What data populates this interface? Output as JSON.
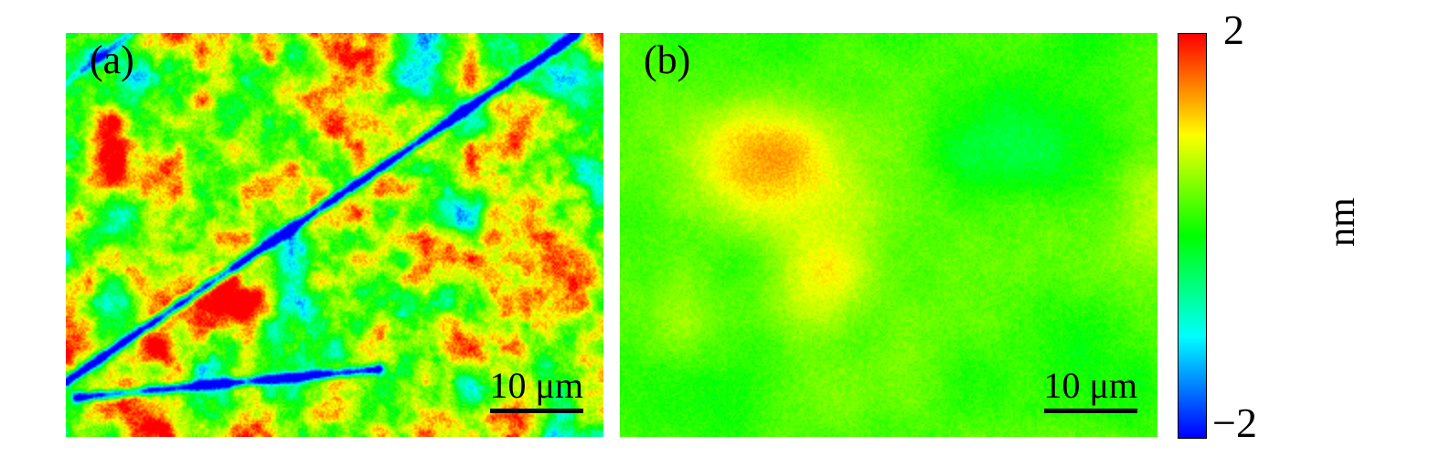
{
  "figure": {
    "panels": [
      {
        "label": "(a)",
        "scalebar_text": "10 μm"
      },
      {
        "label": "(b)",
        "scalebar_text": "10 μm"
      }
    ],
    "colorbar": {
      "tick_top": "2",
      "tick_bottom": "−2",
      "unit": "nm"
    }
  },
  "chart_data": {
    "type": "heatmap",
    "title": "",
    "unit": "nm",
    "value_range_nm": [
      -2,
      2
    ],
    "colorbar_ticks": [
      2,
      -2
    ],
    "scale_bar_um": 10,
    "colormap": "rainbow (blue → green → yellow → orange → red)",
    "legend_position": "right colorbar",
    "panels": [
      {
        "label": "(a)",
        "description": "Rough granular film: red/orange grains ~1–2 nm high over yellow/green background, scattered blue pits and long blue diagonal scratch lines reaching −2 nm.",
        "approx_grid_nm": [
          [
            0.6,
            1.6,
            0.4,
            1.8,
            0.8,
            -1.2,
            0.9,
            1.5,
            -0.5,
            1.2
          ],
          [
            1.8,
            0.9,
            1.7,
            1.3,
            1.9,
            0.3,
            1.6,
            -1.0,
            0.8,
            1.5
          ],
          [
            0.2,
            1.4,
            0.5,
            1.8,
            1.6,
            0.7,
            1.8,
            1.2,
            0.1,
            -0.8
          ],
          [
            1.5,
            -0.6,
            1.2,
            1.9,
            0.4,
            1.7,
            0.6,
            1.4,
            0.9,
            1.6
          ],
          [
            0.8,
            1.6,
            0.2,
            0.9,
            1.8,
            1.1,
            -0.9,
            1.5,
            1.7,
            0.5
          ],
          [
            -1.5,
            0.7,
            1.5,
            0.3,
            1.6,
            1.8,
            0.8,
            1.2,
            -0.4,
            1.4
          ],
          [
            -1.8,
            -1.2,
            0.9,
            1.7,
            0.6,
            1.4,
            1.0,
            1.6,
            0.7,
            1.1
          ]
        ],
        "render": {
          "seed": 7,
          "freq": 9,
          "octaves": 4,
          "gain": 0.55,
          "base": 0.6,
          "spread": 2.7,
          "grain": 0.5,
          "blobs": [
            {
              "x": 0.48,
              "y": 0.28,
              "r": 0.2,
              "amp": 0.6
            },
            {
              "x": 0.25,
              "y": 0.72,
              "r": 0.16,
              "amp": 0.5
            },
            {
              "x": 0.78,
              "y": 0.6,
              "r": 0.14,
              "amp": 0.5
            },
            {
              "x": 0.55,
              "y": 0.78,
              "r": 0.12,
              "amp": 0.5
            },
            {
              "x": 0.08,
              "y": 0.06,
              "r": 0.1,
              "amp": -1.6
            },
            {
              "x": 0.6,
              "y": 0.12,
              "r": 0.08,
              "amp": -1.3
            },
            {
              "x": 0.3,
              "y": 0.45,
              "r": 0.06,
              "amp": -0.9
            },
            {
              "x": 0.97,
              "y": 0.35,
              "r": 0.07,
              "amp": -1.0
            },
            {
              "x": 0.45,
              "y": 0.08,
              "r": 0.06,
              "amp": -0.9
            }
          ],
          "scratches": [
            {
              "x1": 0.95,
              "y1": 0.0,
              "x2": 0.0,
              "y2": 0.86,
              "w": 0.012,
              "depth": 3.5
            },
            {
              "x1": 0.02,
              "y1": 0.9,
              "x2": 0.58,
              "y2": 0.83,
              "w": 0.012,
              "depth": 3.0
            },
            {
              "x1": 0.0,
              "y1": 0.12,
              "x2": 0.12,
              "y2": 0.0,
              "w": 0.01,
              "depth": 1.2
            }
          ]
        }
      },
      {
        "label": "(b)",
        "description": "Smooth film: mostly uniform green/yellow (≈0–0.5 nm) with a broad orange mound (≈1–1.3 nm) left of center and faint yellow patch near right edge.",
        "approx_grid_nm": [
          [
            0.3,
            0.4,
            0.4,
            0.3,
            0.2,
            0.1,
            0.1,
            0.2,
            0.2,
            0.4
          ],
          [
            0.3,
            0.8,
            1.1,
            0.6,
            0.3,
            0.1,
            0.1,
            0.1,
            0.3,
            0.5
          ],
          [
            0.4,
            1.2,
            1.3,
            0.8,
            0.3,
            0.2,
            0.1,
            0.2,
            0.4,
            0.6
          ],
          [
            0.3,
            0.9,
            1.1,
            0.9,
            0.4,
            0.2,
            0.1,
            0.2,
            0.5,
            0.7
          ],
          [
            0.2,
            0.5,
            0.9,
            1.1,
            0.6,
            0.3,
            0.2,
            0.3,
            0.5,
            0.6
          ],
          [
            0.3,
            0.4,
            0.6,
            0.8,
            0.5,
            0.2,
            0.1,
            0.2,
            0.4,
            0.5
          ],
          [
            0.4,
            0.3,
            0.4,
            0.5,
            0.3,
            0.2,
            0.1,
            0.2,
            0.3,
            0.4
          ]
        ],
        "render": {
          "seed": 13,
          "freq": 3.5,
          "octaves": 4,
          "gain": 0.5,
          "base": 0.25,
          "spread": 0.5,
          "grain": 0.28,
          "blobs": [
            {
              "x": 0.28,
              "y": 0.33,
              "r": 0.17,
              "amp": 0.85
            },
            {
              "x": 0.37,
              "y": 0.6,
              "r": 0.13,
              "amp": 0.65
            },
            {
              "x": 0.13,
              "y": 0.72,
              "r": 0.12,
              "amp": 0.35
            },
            {
              "x": 0.99,
              "y": 0.42,
              "r": 0.1,
              "amp": 0.5
            },
            {
              "x": 0.72,
              "y": 0.25,
              "r": 0.18,
              "amp": -0.25
            },
            {
              "x": 0.85,
              "y": 0.75,
              "r": 0.15,
              "amp": -0.15
            }
          ],
          "scratches": []
        }
      }
    ]
  }
}
